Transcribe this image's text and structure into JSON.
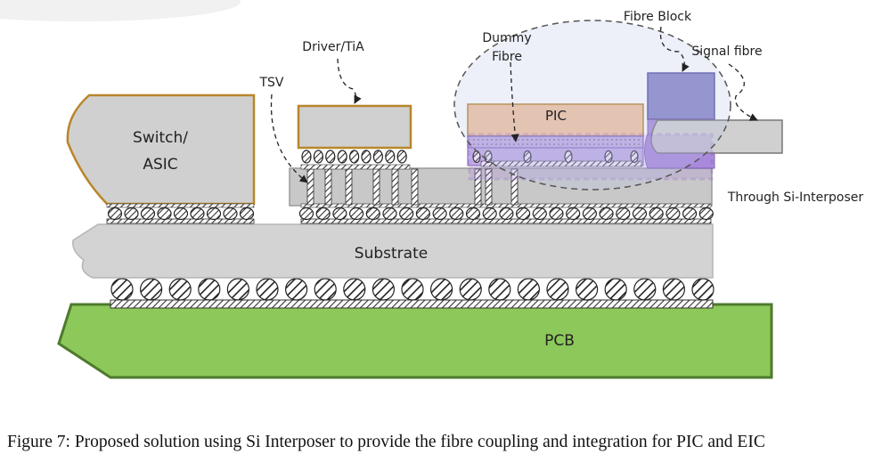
{
  "labels": {
    "switch_asic_line1": "Switch/",
    "switch_asic_line2": "ASIC",
    "driver_tia": "Driver/TiA",
    "tsv": "TSV",
    "dummy_fibre_line1": "Dummy",
    "dummy_fibre_line2": "Fibre",
    "fibre_block": "Fibre Block",
    "signal_fibre": "Signal fibre",
    "pic": "PIC",
    "through_si_interposer": "Through Si-Interposer",
    "substrate": "Substrate",
    "pcb": "PCB"
  },
  "caption": "Figure 7: Proposed solution using Si Interposer to provide the fibre coupling and integration for PIC and EIC",
  "colors": {
    "pcb_fill": "#8dc85a",
    "pcb_stroke": "#4e7a2c",
    "substrate_fill": "#d3d3d3",
    "chip_fill": "#d0d0d0",
    "chip_border": "#b8862b",
    "pic_fill": "#f2c3a0",
    "fibre_block_fill": "#8a86c8",
    "highlight_purple": "#9b6fd0",
    "interposer_fill": "#c8c8c8"
  }
}
